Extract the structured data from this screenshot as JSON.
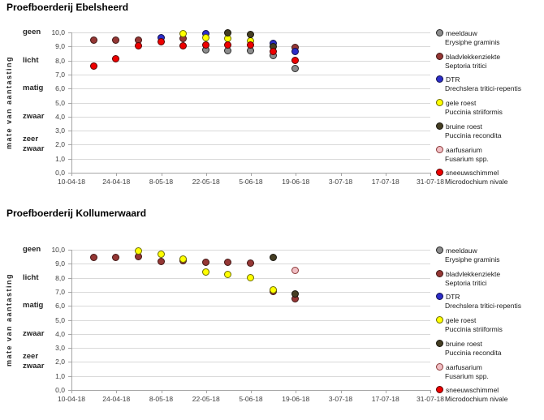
{
  "window": {
    "background": "#ffffff"
  },
  "axis": {
    "y_title": "mate van aantasting",
    "y_numeric_ticks": [
      "10,0",
      "9,0",
      "8,0",
      "7,0",
      "6,0",
      "5,0",
      "4,0",
      "3,0",
      "2,0",
      "1,0",
      "0,0"
    ],
    "y_categories": [
      {
        "label": "geen",
        "value": 10
      },
      {
        "label": "licht",
        "value": 8
      },
      {
        "label": "matig",
        "value": 6
      },
      {
        "label": "zwaar",
        "value": 4
      },
      {
        "label": "zeer zwaar",
        "value": 2
      }
    ],
    "x_ticks": [
      "10-04-18",
      "24-04-18",
      "8-05-18",
      "22-05-18",
      "5-06-18",
      "19-06-18",
      "3-07-18",
      "17-07-18",
      "31-07-18"
    ],
    "x_note": "series point x = days after 10-04-18, axis spans 0..112 days"
  },
  "legend": [
    {
      "name": "meeldauw",
      "latin": "Erysiphe graminis",
      "fill": "#8c8c8c",
      "stroke": "#262626"
    },
    {
      "name": "bladvlekkenziekte",
      "latin": "Septoria tritici",
      "fill": "#953735",
      "stroke": "#401513"
    },
    {
      "name": "DTR",
      "latin": "Drechslera tritici-repentis",
      "fill": "#2d2dc8",
      "stroke": "#10104f"
    },
    {
      "name": "gele roest",
      "latin": "Puccinia striiformis",
      "fill": "#ffff00",
      "stroke": "#6b6b00"
    },
    {
      "name": "bruine roest",
      "latin": "Puccinia recondita",
      "fill": "#453e23",
      "stroke": "#16140c"
    },
    {
      "name": "aarfusarium",
      "latin": "Fusarium spp.",
      "fill": "#f0bec4",
      "stroke": "#8c3a38"
    },
    {
      "name": "sneeuwschimmel",
      "latin": "Microdochium nivale",
      "fill": "#ee0000",
      "stroke": "#560000"
    }
  ],
  "chart_data": [
    {
      "type": "scatter",
      "title": "Proefboerderij Ebelsheerd",
      "ylabel": "mate van aantasting",
      "ylim": [
        0,
        10
      ],
      "x_tick_labels": [
        "10-04-18",
        "24-04-18",
        "8-05-18",
        "22-05-18",
        "5-06-18",
        "19-06-18",
        "3-07-18",
        "17-07-18",
        "31-07-18"
      ],
      "series": [
        {
          "name": "meeldauw",
          "points": [
            [
              42,
              8.7
            ],
            [
              49,
              8.65
            ],
            [
              56,
              8.65
            ],
            [
              63,
              8.3
            ],
            [
              70,
              7.4
            ]
          ]
        },
        {
          "name": "bladvlekkenziekte",
          "points": [
            [
              7,
              9.4
            ],
            [
              14,
              9.45
            ],
            [
              21,
              9.45
            ],
            [
              35,
              9.55
            ],
            [
              70,
              8.9
            ]
          ]
        },
        {
          "name": "DTR",
          "points": [
            [
              28,
              9.6
            ],
            [
              42,
              9.9
            ],
            [
              63,
              9.2
            ],
            [
              70,
              8.6
            ]
          ]
        },
        {
          "name": "gele roest",
          "points": [
            [
              35,
              9.9
            ],
            [
              42,
              9.6
            ],
            [
              49,
              9.55
            ],
            [
              56,
              9.35
            ]
          ]
        },
        {
          "name": "bruine roest",
          "points": [
            [
              49,
              9.95
            ],
            [
              56,
              9.85
            ],
            [
              63,
              8.95
            ]
          ]
        },
        {
          "name": "sneeuwschimmel",
          "points": [
            [
              7,
              7.6
            ],
            [
              14,
              8.1
            ],
            [
              21,
              9.0
            ],
            [
              28,
              9.3
            ],
            [
              35,
              9.0
            ],
            [
              42,
              9.05
            ],
            [
              49,
              9.05
            ],
            [
              56,
              9.1
            ],
            [
              63,
              8.6
            ],
            [
              70,
              8.0
            ]
          ]
        }
      ]
    },
    {
      "type": "scatter",
      "title": "Proefboerderij Kollumerwaard",
      "ylabel": "mate van aantasting",
      "ylim": [
        0,
        10
      ],
      "x_tick_labels": [
        "10-04-18",
        "24-04-18",
        "8-05-18",
        "22-05-18",
        "5-06-18",
        "19-06-18",
        "3-07-18",
        "17-07-18",
        "31-07-18"
      ],
      "series": [
        {
          "name": "bladvlekkenziekte",
          "points": [
            [
              7,
              9.4
            ],
            [
              14,
              9.45
            ],
            [
              21,
              9.5
            ],
            [
              28,
              9.15
            ],
            [
              35,
              9.2
            ],
            [
              42,
              9.05
            ],
            [
              49,
              9.05
            ],
            [
              56,
              9.0
            ],
            [
              63,
              7.0
            ],
            [
              70,
              6.5
            ]
          ]
        },
        {
          "name": "gele roest",
          "points": [
            [
              21,
              9.9
            ],
            [
              28,
              9.65
            ],
            [
              35,
              9.3
            ],
            [
              42,
              8.4
            ],
            [
              49,
              8.2
            ],
            [
              56,
              8.0
            ],
            [
              63,
              7.1
            ]
          ]
        },
        {
          "name": "bruine roest",
          "points": [
            [
              63,
              9.4
            ],
            [
              70,
              6.8
            ]
          ]
        },
        {
          "name": "aarfusarium",
          "points": [
            [
              70,
              8.5
            ]
          ]
        }
      ]
    }
  ]
}
